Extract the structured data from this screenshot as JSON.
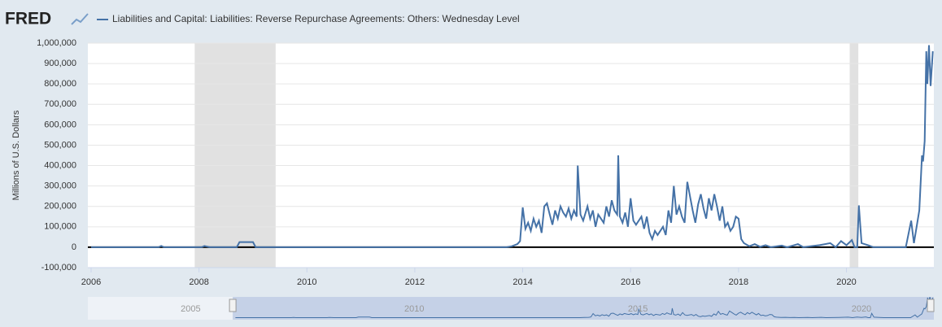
{
  "chart_data": {
    "type": "line",
    "logo": "FRED",
    "y_axis_label": "Millions of U.S. Dollars",
    "series": [
      {
        "name": "Liabilities and Capital: Liabilities: Reverse Repurchase Agreements: Others: Wednesday Level",
        "color": "#4572a7",
        "x": [
          2006.0,
          2007.25,
          2007.3,
          2007.35,
          2008.05,
          2008.1,
          2008.2,
          2008.7,
          2008.75,
          2009.0,
          2009.05,
          2013.7,
          2013.8,
          2013.9,
          2013.95,
          2014.0,
          2014.05,
          2014.1,
          2014.15,
          2014.2,
          2014.25,
          2014.3,
          2014.35,
          2014.4,
          2014.45,
          2014.5,
          2014.55,
          2014.6,
          2014.65,
          2014.7,
          2014.75,
          2014.8,
          2014.85,
          2014.9,
          2014.95,
          2015.0,
          2015.02,
          2015.07,
          2015.12,
          2015.2,
          2015.25,
          2015.3,
          2015.35,
          2015.4,
          2015.5,
          2015.55,
          2015.6,
          2015.65,
          2015.7,
          2015.75,
          2015.77,
          2015.8,
          2015.85,
          2015.9,
          2015.95,
          2016.0,
          2016.05,
          2016.1,
          2016.2,
          2016.25,
          2016.3,
          2016.35,
          2016.4,
          2016.45,
          2016.5,
          2016.6,
          2016.65,
          2016.7,
          2016.75,
          2016.8,
          2016.85,
          2016.9,
          2016.95,
          2017.0,
          2017.05,
          2017.1,
          2017.15,
          2017.2,
          2017.25,
          2017.3,
          2017.35,
          2017.4,
          2017.45,
          2017.5,
          2017.55,
          2017.6,
          2017.65,
          2017.7,
          2017.75,
          2017.8,
          2017.85,
          2017.9,
          2017.95,
          2018.0,
          2018.05,
          2018.1,
          2018.2,
          2018.3,
          2018.4,
          2018.5,
          2018.6,
          2018.8,
          2018.9,
          2019.1,
          2019.2,
          2019.5,
          2019.7,
          2019.8,
          2019.9,
          2020.0,
          2020.1,
          2020.15,
          2020.2,
          2020.23,
          2020.28,
          2020.4,
          2020.5,
          2021.1,
          2021.2,
          2021.25,
          2021.3,
          2021.35,
          2021.4,
          2021.42,
          2021.45,
          2021.48,
          2021.5,
          2021.53,
          2021.56,
          2021.6
        ],
        "values": [
          0,
          0,
          6000,
          0,
          0,
          6000,
          0,
          0,
          25000,
          25000,
          0,
          0,
          5000,
          15000,
          30000,
          195000,
          90000,
          120000,
          80000,
          140000,
          100000,
          130000,
          70000,
          200000,
          215000,
          160000,
          110000,
          180000,
          140000,
          200000,
          170000,
          150000,
          190000,
          140000,
          180000,
          150000,
          400000,
          160000,
          130000,
          200000,
          140000,
          180000,
          100000,
          160000,
          120000,
          200000,
          150000,
          230000,
          180000,
          160000,
          450000,
          150000,
          120000,
          170000,
          100000,
          240000,
          130000,
          110000,
          150000,
          90000,
          150000,
          70000,
          40000,
          80000,
          60000,
          100000,
          60000,
          180000,
          120000,
          300000,
          160000,
          200000,
          150000,
          120000,
          320000,
          250000,
          180000,
          120000,
          210000,
          260000,
          190000,
          140000,
          240000,
          180000,
          260000,
          200000,
          130000,
          200000,
          100000,
          120000,
          80000,
          100000,
          150000,
          140000,
          40000,
          20000,
          5000,
          15000,
          2000,
          10000,
          0,
          8000,
          0,
          15000,
          0,
          10000,
          20000,
          0,
          30000,
          10000,
          35000,
          0,
          0,
          205000,
          20000,
          10000,
          0,
          0,
          130000,
          20000,
          100000,
          180000,
          450000,
          420000,
          520000,
          960000,
          800000,
          990000,
          790000,
          960000
        ]
      }
    ],
    "xlim": [
      2005.94,
      2021.62
    ],
    "xticks": [
      2006,
      2008,
      2010,
      2012,
      2014,
      2016,
      2018,
      2020
    ],
    "ylim": [
      -100000,
      1000000
    ],
    "yticks": [
      {
        "value": -100000,
        "label": "-100,000"
      },
      0,
      {
        "value": 100000,
        "label": "100,000"
      },
      {
        "value": 200000,
        "label": "200,000"
      },
      {
        "value": 300000,
        "label": "300,000"
      },
      {
        "value": 400000,
        "label": "400,000"
      },
      {
        "value": 500000,
        "label": "500,000"
      },
      {
        "value": 600000,
        "label": "600,000"
      },
      {
        "value": 700000,
        "label": "700,000"
      },
      {
        "value": 800000,
        "label": "800,000"
      },
      {
        "value": 900000,
        "label": "900,000"
      },
      {
        "value": {
          "value": 1000000,
          "label": "1,000,000"
        },
        "label": "1,000,000"
      }
    ],
    "grid": true,
    "recessions": [
      [
        2007.92,
        2009.42
      ],
      [
        2020.06,
        2020.22
      ]
    ],
    "navigator": {
      "xlim": [
        2002.7,
        2021.62
      ],
      "labels": [
        2005,
        2010,
        2015,
        2020
      ]
    }
  }
}
